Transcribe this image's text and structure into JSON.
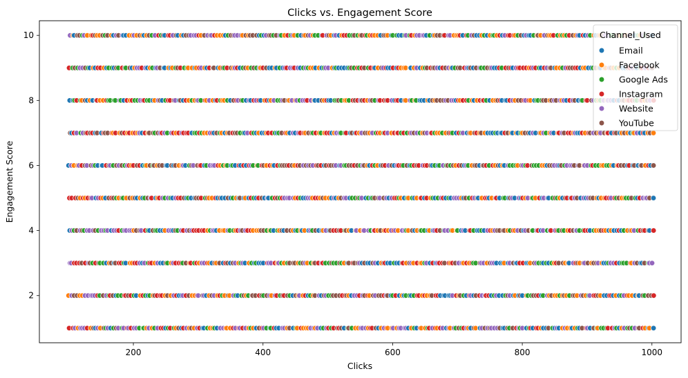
{
  "chart_data": {
    "type": "scatter",
    "title": "Clicks vs. Engagement Score",
    "xlabel": "Clicks",
    "ylabel": "Engagement Score",
    "xlim": [
      55,
      1045
    ],
    "ylim": [
      0.55,
      10.45
    ],
    "xticks": [
      200,
      400,
      600,
      800,
      1000
    ],
    "yticks": [
      2,
      4,
      6,
      8,
      10
    ],
    "grid": false,
    "legend": {
      "title": "Channel_Used",
      "placement": "top-right"
    },
    "x_range_of_points": [
      100,
      1000
    ],
    "y_levels": [
      1,
      2,
      3,
      4,
      5,
      6,
      7,
      8,
      9,
      10
    ],
    "series": [
      {
        "name": "Email",
        "color": "#1f77b4"
      },
      {
        "name": "Facebook",
        "color": "#ff7f0e"
      },
      {
        "name": "Google Ads",
        "color": "#2ca02c"
      },
      {
        "name": "Instagram",
        "color": "#d62728"
      },
      {
        "name": "Website",
        "color": "#9467bd"
      },
      {
        "name": "YouTube",
        "color": "#8c564b"
      }
    ]
  }
}
